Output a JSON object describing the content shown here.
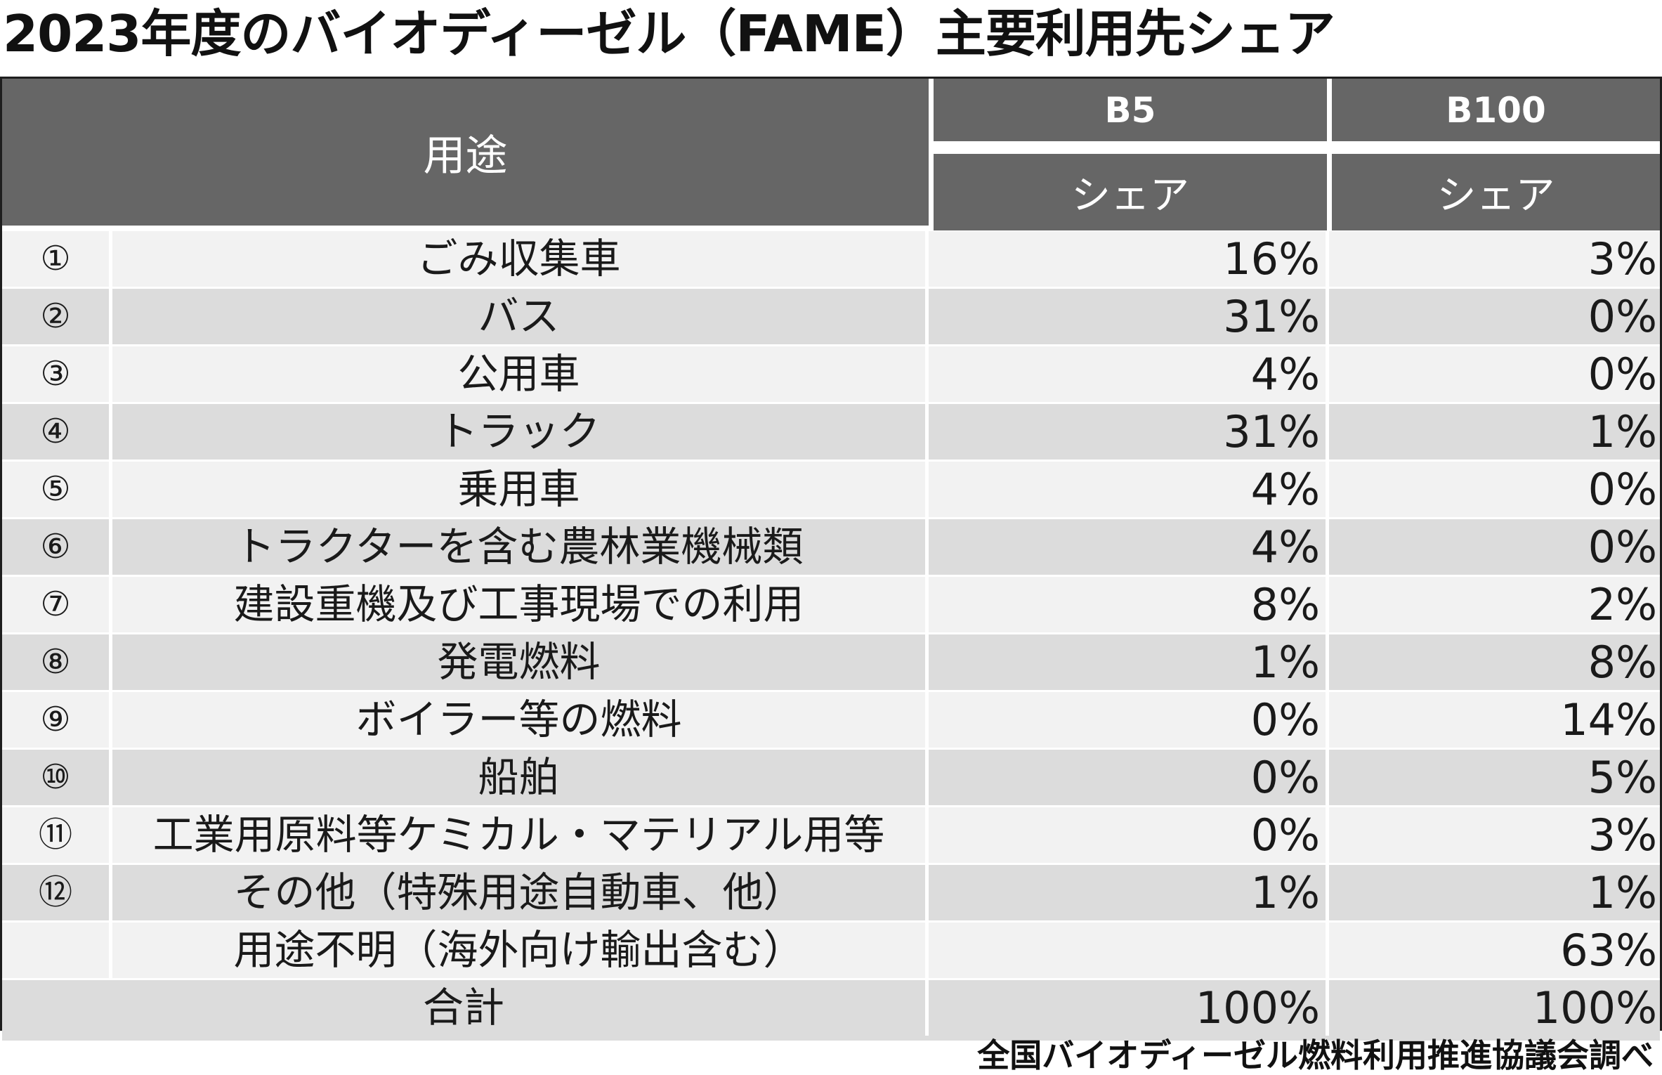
{
  "title": "2023年度のバイオディーゼル（FAME）主要利用先シェア",
  "header": {
    "usage": "用途",
    "b5": "B5",
    "b100": "B100",
    "b5_sub": "シェア",
    "b100_sub": "シェア"
  },
  "rows": [
    {
      "num": "①",
      "usage": "ごみ収集車",
      "b5": "16%",
      "b100": "3%"
    },
    {
      "num": "②",
      "usage": "バス",
      "b5": "31%",
      "b100": "0%"
    },
    {
      "num": "③",
      "usage": "公用車",
      "b5": "4%",
      "b100": "0%"
    },
    {
      "num": "④",
      "usage": "トラック",
      "b5": "31%",
      "b100": "1%"
    },
    {
      "num": "⑤",
      "usage": "乗用車",
      "b5": "4%",
      "b100": "0%"
    },
    {
      "num": "⑥",
      "usage": "トラクターを含む農林業機械類",
      "b5": "4%",
      "b100": "0%"
    },
    {
      "num": "⑦",
      "usage": "建設重機及び工事現場での利用",
      "b5": "8%",
      "b100": "2%"
    },
    {
      "num": "⑧",
      "usage": "発電燃料",
      "b5": "1%",
      "b100": "8%"
    },
    {
      "num": "⑨",
      "usage": "ボイラー等の燃料",
      "b5": "0%",
      "b100": "14%"
    },
    {
      "num": "⑩",
      "usage": "船舶",
      "b5": "0%",
      "b100": "5%"
    },
    {
      "num": "⑪",
      "usage": "工業用原料等ケミカル・マテリアル用等",
      "b5": "0%",
      "b100": "3%"
    },
    {
      "num": "⑫",
      "usage": "その他（特殊用途自動車、他）",
      "b5": "1%",
      "b100": "1%"
    },
    {
      "num": "",
      "usage": "用途不明（海外向け輸出含む）",
      "b5": "",
      "b100": "63%"
    }
  ],
  "total": {
    "label": "合計",
    "b5": "100%",
    "b100": "100%"
  },
  "source": "全国バイオディーゼル燃料利用推進協議会調べ"
}
